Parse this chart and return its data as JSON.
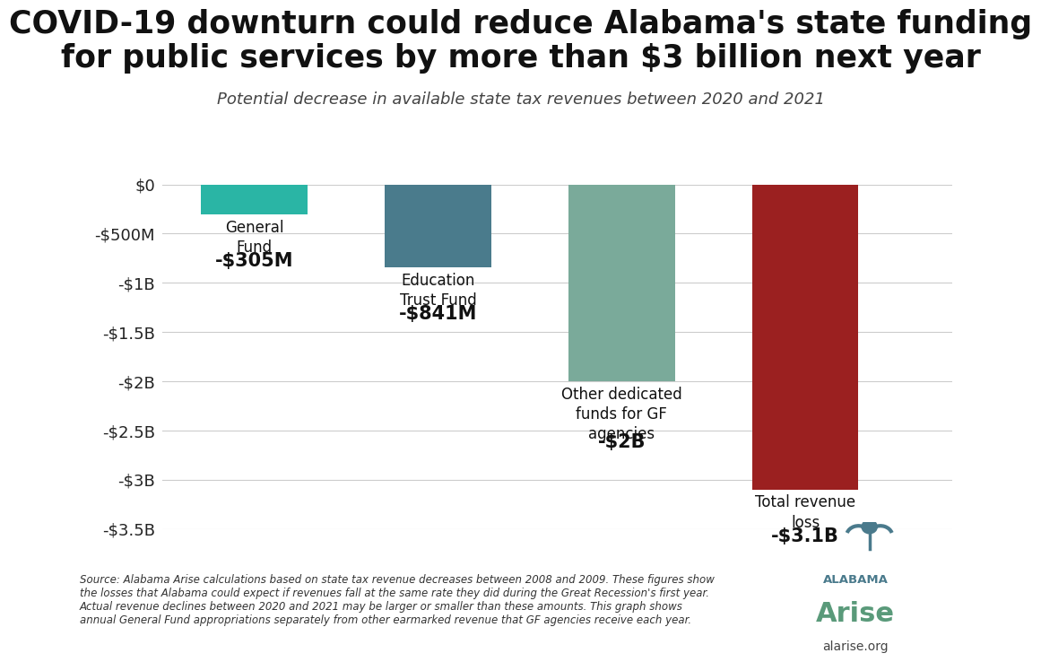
{
  "title_line1": "COVID-19 downturn could reduce Alabama's state funding",
  "title_line2": "for public services by more than $3 billion next year",
  "subtitle": "Potential decrease in available state tax revenues between 2020 and 2021",
  "categories": [
    "General\nFund",
    "Education\nTrust Fund",
    "Other dedicated\nfunds for GF\nagencies",
    "Total revenue\nloss"
  ],
  "values": [
    -305,
    -841,
    -2000,
    -3100
  ],
  "value_labels": [
    "-$305M",
    "-$841M",
    "-$2B",
    "-$3.1B"
  ],
  "bar_colors": [
    "#2ab5a5",
    "#4a7b8c",
    "#7aaa9a",
    "#9b2020"
  ],
  "ylim": [
    -3500,
    0
  ],
  "yticks": [
    0,
    -500,
    -1000,
    -1500,
    -2000,
    -2500,
    -3000,
    -3500
  ],
  "ytick_labels": [
    "$0",
    "-$500M",
    "-$1B",
    "-$1.5B",
    "-$2B",
    "-$2.5B",
    "-$3B",
    "-$3.5B"
  ],
  "background_color": "#ffffff",
  "grid_color": "#cccccc",
  "source_text": "Source: Alabama Arise calculations based on state tax revenue decreases between 2008 and 2009. These figures show\nthe losses that Alabama could expect if revenues fall at the same rate they did during the Great Recession's first year.\nActual revenue declines between 2020 and 2021 may be larger or smaller than these amounts. This graph shows\nannual General Fund appropriations separately from other earmarked revenue that GF agencies receive each year.",
  "logo_text_alabama": "ALABAMA",
  "logo_text_arise": "Arise",
  "logo_url": "alarise.org",
  "title_fontsize": 25,
  "subtitle_fontsize": 13,
  "value_label_fontsize": 15,
  "cat_label_fontsize": 12,
  "ytick_fontsize": 13,
  "source_fontsize": 8.5
}
